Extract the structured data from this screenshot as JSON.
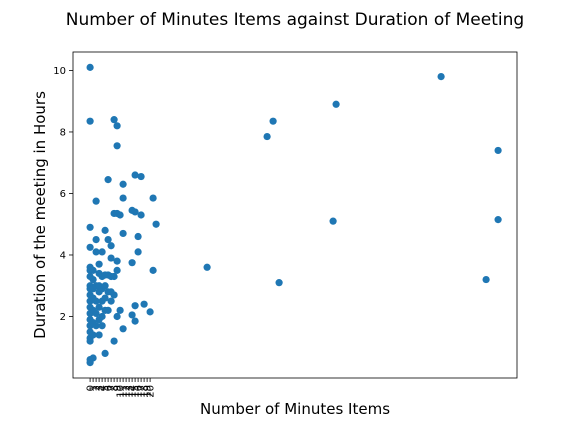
{
  "chart_data": {
    "type": "scatter",
    "title": "Number of Minutes Items against Duration of Meeting",
    "x_label": "Number of Minutes Items",
    "y_label": "Duration of the meeting in Hours",
    "color": "#1f77b4",
    "x": [
      0,
      0,
      0,
      0,
      0,
      0,
      0,
      0,
      0,
      0,
      0,
      0,
      0,
      0,
      0,
      0,
      0,
      0,
      0,
      0,
      1,
      1,
      1,
      1,
      1,
      1,
      1,
      1,
      2,
      2,
      2,
      2,
      2,
      2,
      2,
      3,
      3,
      3,
      3,
      3,
      3,
      3,
      4,
      4,
      4,
      4,
      4,
      4,
      5,
      5,
      5,
      5,
      5,
      5,
      6,
      6,
      6,
      6,
      6,
      7,
      7,
      7,
      7,
      7,
      8,
      8,
      8,
      8,
      8,
      9,
      9,
      9,
      9,
      9,
      9,
      10,
      10,
      11,
      11,
      11,
      11,
      14,
      14,
      14,
      15,
      15,
      15,
      15,
      16,
      16,
      17,
      17,
      18,
      20,
      21,
      21,
      22,
      39,
      59,
      61,
      63,
      81,
      82,
      117,
      132,
      136,
      136
    ],
    "y": [
      10.1,
      8.35,
      4.9,
      4.25,
      3.6,
      3.5,
      3.3,
      3.0,
      2.9,
      2.7,
      2.5,
      2.3,
      2.1,
      1.9,
      1.7,
      1.5,
      1.3,
      1.2,
      0.6,
      0.5,
      3.5,
      3.2,
      2.9,
      2.6,
      2.2,
      1.8,
      1.4,
      0.65,
      5.75,
      4.5,
      4.1,
      3.0,
      2.5,
      2.1,
      1.7,
      3.7,
      3.4,
      3.0,
      2.8,
      2.3,
      1.9,
      1.4,
      4.1,
      3.3,
      2.9,
      2.5,
      2.0,
      1.7,
      4.8,
      3.35,
      3.0,
      2.6,
      2.2,
      0.8,
      6.45,
      4.5,
      3.35,
      2.8,
      2.2,
      4.3,
      3.9,
      3.3,
      2.8,
      2.5,
      8.4,
      5.35,
      3.3,
      2.7,
      1.2,
      8.2,
      7.55,
      5.35,
      3.8,
      3.5,
      2.0,
      5.3,
      2.2,
      6.3,
      5.85,
      4.7,
      1.6,
      5.45,
      3.75,
      2.05,
      6.6,
      5.4,
      2.35,
      1.85,
      4.6,
      4.1,
      6.55,
      5.3,
      2.4,
      2.15,
      5.85,
      3.5,
      5.0,
      3.6,
      7.85,
      8.35,
      3.1,
      5.1,
      8.9,
      9.8,
      3.2,
      7.4,
      5.15
    ],
    "xlim": [
      -5.7,
      142.3
    ],
    "ylim": [
      0.0,
      10.6
    ],
    "xticks": [
      0,
      1,
      2,
      3,
      4,
      5,
      6,
      7,
      8,
      9,
      10,
      11,
      12,
      13,
      14,
      15,
      16,
      17,
      18,
      19,
      20
    ],
    "yticks": [
      2,
      4,
      6,
      8,
      10
    ]
  }
}
